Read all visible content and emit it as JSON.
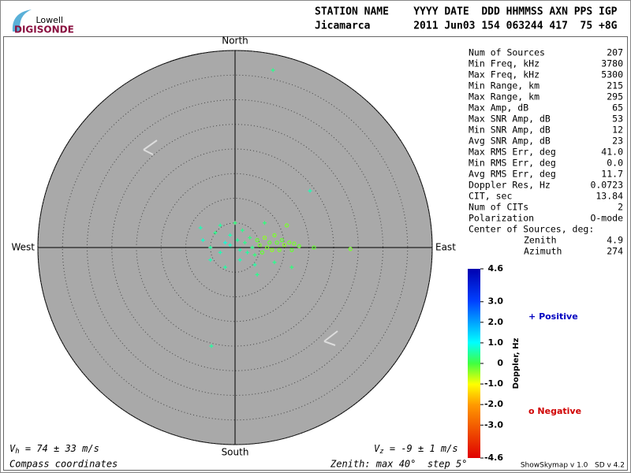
{
  "header": {
    "logo_top": "Lowell",
    "logo_bottom": "DIGISONDE",
    "row1": "STATION NAME    YYYY DATE  DDD HHMMSS AXN PPS IGP",
    "row2": "Jicamarca       2011 Jun03 154 063244 417  75 +8G"
  },
  "chart_data": {
    "type": "skymap",
    "directions": {
      "north": "North",
      "south": "South",
      "east": "East",
      "west": "West"
    },
    "rlim": [
      0,
      40
    ],
    "rticks": [
      5,
      10,
      15,
      20,
      25,
      30,
      35,
      40
    ],
    "points": {
      "x": [
        7.7,
        15.2,
        -4.8,
        23.4,
        16,
        -3,
        -7,
        -4,
        0,
        -6.5,
        -5,
        -3,
        -2,
        -1,
        0.5,
        1,
        2,
        2.5,
        3,
        3.5,
        4,
        4.5,
        5,
        5.5,
        6,
        6.5,
        7,
        7.5,
        8,
        8.5,
        9,
        9.5,
        10,
        11,
        11.5,
        12,
        13,
        10.5,
        6,
        1,
        4,
        4.5,
        -5,
        -2,
        1.5,
        -1,
        11.5,
        8
      ],
      "y": [
        36,
        11.5,
        -20,
        -0.3,
        0,
        4.5,
        4,
        3,
        5,
        1.5,
        0,
        -1,
        1,
        0.5,
        1.5,
        -0.5,
        1,
        -1,
        2,
        0,
        -1.5,
        1.5,
        0.5,
        -1,
        2,
        0,
        1,
        -0.5,
        2.5,
        1,
        -0.5,
        1.5,
        0.5,
        1,
        -0.5,
        0.8,
        0.3,
        4.5,
        5,
        -2.5,
        -3.5,
        -5.5,
        -2.5,
        -4,
        3.5,
        2.5,
        -4,
        -3
      ],
      "doppler": [
        0.4,
        0.6,
        0.5,
        -0.3,
        -0.2,
        0.5,
        0.6,
        0.4,
        0.3,
        0.7,
        0.5,
        0.6,
        0.8,
        0.7,
        0.5,
        0.6,
        0.4,
        0.5,
        0.3,
        0.4,
        0.3,
        -0.2,
        -0.3,
        -0.2,
        -0.4,
        -0.3,
        -0.2,
        -0.4,
        -0.3,
        -0.2,
        -0.3,
        -0.2,
        -0.4,
        -0.3,
        -0.2,
        -0.3,
        -0.2,
        -0.3,
        0.3,
        0.6,
        0.5,
        0.4,
        0.6,
        0.5,
        0.4,
        0.6,
        0.3,
        0.4
      ]
    },
    "colorbar": {
      "label": "Doppler, Hz",
      "lim": [
        -4.6,
        4.6
      ],
      "ticks": [
        4.6,
        {
          "value": 3,
          "label": "3.0"
        },
        {
          "value": 2,
          "label": "2.0"
        },
        {
          "value": 1,
          "label": "1.0"
        },
        0,
        {
          "value": -1,
          "label": "-1.0"
        },
        {
          "value": -2,
          "label": "-2.0"
        },
        {
          "value": -3,
          "label": "-3.0"
        },
        -4.6
      ]
    },
    "legend": {
      "positive_symbol": "+",
      "positive": "Positive",
      "negative_symbol": "o",
      "negative": "Negative"
    },
    "vh": {
      "symbol": "V",
      "sub": "h",
      "text": " = 74 ± 33 m/s"
    },
    "vz": {
      "symbol": "V",
      "sub": "z",
      "text": " = -9 ± 1 m/s"
    },
    "coords": "Compass coordinates",
    "zenith_note": "Zenith: max 40°  step 5°",
    "version": "ShowSkymap v 1.0   SD v 4.2"
  },
  "stats": {
    "rows": [
      [
        "Num of Sources",
        "207"
      ],
      [
        "Min Freq, kHz",
        "3780"
      ],
      [
        "Max Freq, kHz",
        "5300"
      ],
      [
        "Min Range, km",
        "215"
      ],
      [
        "Max Range, km",
        "295"
      ],
      [
        "Max Amp, dB",
        "65"
      ],
      [
        "Max SNR Amp, dB",
        "53"
      ],
      [
        "Min SNR Amp, dB",
        "12"
      ],
      [
        "Avg SNR Amp, dB",
        "23"
      ],
      [
        "Max RMS Err, deg",
        "41.0"
      ],
      [
        "Min RMS Err, deg",
        "0.0"
      ],
      [
        "Avg RMS Err, deg",
        "11.7"
      ],
      [
        "Doppler Res, Hz",
        "0.0723"
      ],
      [
        "CIT, sec",
        "13.84"
      ],
      [
        "Num of CITs",
        "2"
      ],
      [
        "Polarization",
        "O-mode"
      ]
    ],
    "center_title": "Center of Sources, deg:",
    "center_rows": [
      [
        "Zenith",
        "4.9"
      ],
      [
        "Azimuth",
        "274"
      ]
    ]
  }
}
